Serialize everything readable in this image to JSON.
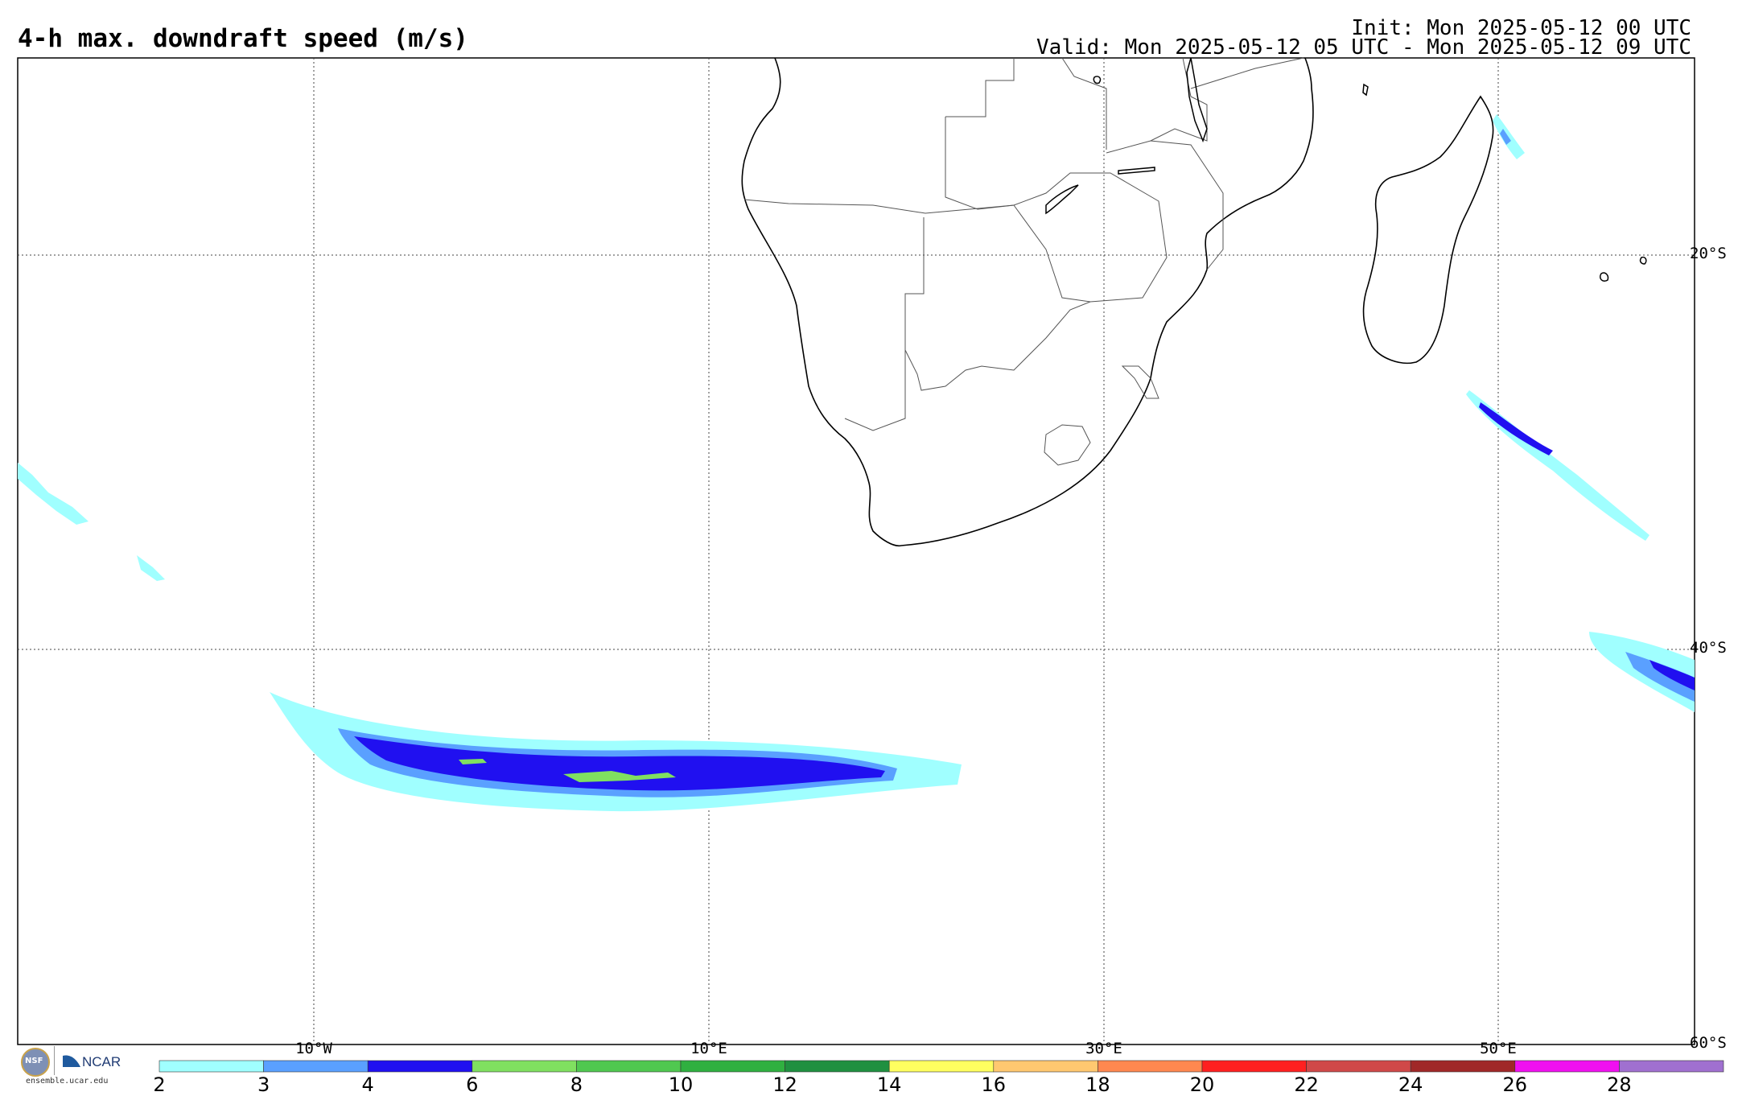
{
  "header": {
    "title": "4-h max. downdraft speed (m/s)",
    "init": "Init: Mon 2025-05-12 00 UTC",
    "valid": "Valid: Mon 2025-05-12 05 UTC - Mon 2025-05-12 09 UTC"
  },
  "map": {
    "lat_labels": [
      "20°S",
      "40°S",
      "60°S"
    ],
    "lon_labels": [
      "10°W",
      "10°E",
      "30°E",
      "50°E"
    ]
  },
  "logo": {
    "org": "NCAR",
    "seal": "NSF",
    "url": "ensemble.ucar.edu"
  },
  "colorbar": {
    "labels": [
      "2",
      "3",
      "4",
      "6",
      "8",
      "10",
      "12",
      "14",
      "16",
      "18",
      "20",
      "22",
      "24",
      "26",
      "28"
    ],
    "colors": [
      "#a0ffff",
      "#5aa0ff",
      "#2010f0",
      "#80e060",
      "#50c850",
      "#30b040",
      "#209040",
      "#ffff60",
      "#ffc870",
      "#ff8850",
      "#ff2020",
      "#d04848",
      "#a02828",
      "#f010f0",
      "#a070d0"
    ]
  }
}
